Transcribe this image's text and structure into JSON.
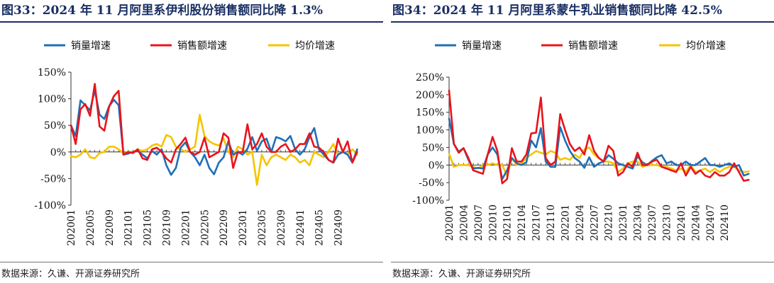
{
  "colors": {
    "volume": "#1f6fb6",
    "sales": "#e8141b",
    "price": "#f5c400",
    "title": "#1a2f63"
  },
  "panels": [
    {
      "title": "图33：2024 年 11 月阿里系伊利股份销售额同比降 1.3%",
      "source": "数据来源：久谦、开源证券研究所"
    },
    {
      "title": "图34：2024 年 11 月阿里系蒙牛乳业销售额同比降 42.5%",
      "source": "数据来源：久谦、开源证券研究所"
    }
  ],
  "chart_data": [
    {
      "type": "line",
      "title": "",
      "xlabel": "",
      "ylabel": "",
      "ylim": [
        -1.0,
        1.5
      ],
      "yticks": [
        -1.0,
        -0.5,
        0,
        0.5,
        1.0,
        1.5
      ],
      "ytick_labels": [
        "-100%",
        "-50%",
        "0%",
        "50%",
        "100%",
        "150%"
      ],
      "x_start": "202001",
      "x_end": "202411",
      "x_tick_labels": [
        "202001",
        "202005",
        "202009",
        "202101",
        "202105",
        "202109",
        "202201",
        "202205",
        "202209",
        "202301",
        "202305",
        "202309",
        "202401",
        "202405",
        "202409"
      ],
      "legend_position": "top",
      "series": [
        {
          "name": "销量增速",
          "color_key": "volume",
          "values": [
            0.5,
            0.3,
            0.97,
            0.88,
            0.78,
            1.16,
            0.7,
            0.62,
            0.86,
            0.98,
            0.88,
            -0.05,
            -0.03,
            0.0,
            0.02,
            -0.05,
            -0.12,
            0.02,
            -0.05,
            0.05,
            -0.25,
            -0.43,
            -0.3,
            0.08,
            0.18,
            0.0,
            -0.1,
            -0.25,
            -0.05,
            -0.3,
            -0.42,
            -0.2,
            -0.1,
            0.2,
            -0.05,
            0.0,
            -0.05,
            0.06,
            0.28,
            0.02,
            0.2,
            0.25,
            0.0,
            0.28,
            0.25,
            0.2,
            0.3,
            0.05,
            -0.05,
            0.05,
            0.28,
            0.45,
            0.05,
            -0.05,
            -0.15,
            -0.2,
            -0.05,
            0.0,
            -0.05,
            -0.2,
            0.05
          ]
        },
        {
          "name": "销售额增速",
          "color_key": "sales",
          "values": [
            0.5,
            0.15,
            0.8,
            0.9,
            0.68,
            1.28,
            0.48,
            0.4,
            0.85,
            1.05,
            1.15,
            -0.05,
            0.0,
            -0.02,
            0.05,
            -0.12,
            -0.15,
            0.05,
            0.08,
            0.0,
            -0.12,
            -0.2,
            0.05,
            0.15,
            0.27,
            0.0,
            -0.05,
            0.0,
            0.27,
            -0.1,
            -0.05,
            0.0,
            0.35,
            0.27,
            -0.3,
            0.0,
            0.0,
            0.52,
            0.05,
            0.15,
            0.35,
            0.1,
            0.0,
            0.0,
            0.1,
            0.15,
            0.0,
            0.05,
            0.15,
            0.15,
            0.35,
            0.1,
            0.08,
            0.0,
            -0.15,
            -0.2,
            0.25,
            0.0,
            0.2,
            -0.2,
            0.0
          ]
        },
        {
          "name": "均价增速",
          "color_key": "price",
          "values": [
            -0.08,
            -0.1,
            -0.05,
            0.05,
            -0.1,
            -0.12,
            -0.02,
            0.0,
            0.1,
            0.1,
            0.05,
            -0.03,
            0.0,
            0.0,
            0.05,
            0.02,
            0.05,
            0.12,
            0.15,
            0.1,
            0.32,
            0.28,
            0.1,
            0.05,
            0.0,
            0.05,
            0.1,
            0.7,
            0.3,
            0.2,
            0.15,
            0.12,
            0.25,
            0.0,
            -0.1,
            0.1,
            0.05,
            -0.05,
            0.0,
            -0.62,
            -0.05,
            -0.25,
            -0.1,
            -0.05,
            -0.1,
            -0.15,
            -0.05,
            -0.1,
            -0.2,
            -0.15,
            -0.25,
            0.0,
            -0.05,
            -0.1,
            0.0,
            0.15,
            -0.05,
            0.0,
            -0.05,
            0.05,
            -0.05
          ]
        }
      ]
    },
    {
      "type": "line",
      "title": "",
      "xlabel": "",
      "ylabel": "",
      "ylim": [
        -1.0,
        2.5
      ],
      "yticks": [
        -1.0,
        -0.5,
        0,
        0.5,
        1.0,
        1.5,
        2.0,
        2.5
      ],
      "ytick_labels": [
        "-100%",
        "-50%",
        "0%",
        "50%",
        "100%",
        "150%",
        "200%",
        "250%"
      ],
      "x_start": "202001",
      "x_end": "202411",
      "x_tick_labels": [
        "202001",
        "202004",
        "202007",
        "202010",
        "202101",
        "202104",
        "202107",
        "202110",
        "202201",
        "202204",
        "202207",
        "202210",
        "202301",
        "202304",
        "202307",
        "202310",
        "202401",
        "202404",
        "202407",
        "202410"
      ],
      "legend_position": "top",
      "series": [
        {
          "name": "销量增速",
          "color_key": "volume",
          "values": [
            1.32,
            0.6,
            0.38,
            0.48,
            0.15,
            -0.1,
            -0.08,
            -0.1,
            0.3,
            0.5,
            0.3,
            -0.4,
            -0.15,
            0.2,
            0.05,
            0.0,
            0.08,
            0.7,
            0.5,
            1.05,
            0.1,
            -0.05,
            -0.05,
            1.08,
            0.7,
            0.4,
            0.2,
            0.1,
            -0.08,
            0.22,
            -0.05,
            0.05,
            0.1,
            0.28,
            0.18,
            0.05,
            0.0,
            -0.05,
            -0.1,
            0.25,
            0.08,
            0.0,
            0.12,
            0.22,
            0.28,
            0.05,
            0.1,
            0.0,
            0.0,
            0.1,
            0.0,
            0.0,
            0.1,
            0.2,
            0.0,
            0.0,
            -0.05,
            0.0,
            0.05,
            -0.05,
            0.0,
            -0.3,
            -0.25
          ]
        },
        {
          "name": "销售额增速",
          "color_key": "sales",
          "values": [
            2.12,
            0.6,
            0.35,
            0.48,
            0.2,
            -0.15,
            -0.2,
            -0.25,
            0.3,
            0.8,
            0.4,
            -0.52,
            -0.4,
            0.48,
            0.1,
            0.1,
            0.3,
            0.9,
            0.92,
            1.92,
            0.2,
            0.0,
            0.1,
            1.45,
            1.0,
            0.6,
            0.4,
            0.5,
            0.3,
            0.85,
            0.4,
            0.2,
            0.1,
            0.55,
            0.4,
            -0.3,
            -0.2,
            0.05,
            -0.05,
            0.35,
            0.0,
            0.0,
            0.1,
            0.15,
            -0.05,
            -0.1,
            -0.15,
            -0.2,
            0.05,
            -0.3,
            -0.05,
            -0.25,
            -0.15,
            -0.3,
            -0.35,
            -0.2,
            -0.3,
            -0.3,
            -0.2,
            0.05,
            -0.2,
            -0.45,
            -0.42
          ]
        },
        {
          "name": "均价增速",
          "color_key": "price",
          "values": [
            0.32,
            -0.05,
            0.0,
            0.0,
            0.0,
            -0.05,
            -0.1,
            0.0,
            0.0,
            0.05,
            0.0,
            0.0,
            -0.3,
            0.2,
            0.0,
            0.05,
            0.2,
            0.3,
            0.4,
            0.35,
            0.3,
            0.4,
            0.35,
            0.15,
            0.2,
            0.15,
            0.3,
            0.2,
            0.45,
            0.5,
            0.3,
            0.2,
            0.1,
            0.1,
            0.05,
            -0.2,
            -0.1,
            0.05,
            0.1,
            0.1,
            -0.05,
            0.0,
            0.0,
            0.0,
            -0.05,
            -0.05,
            -0.1,
            -0.15,
            -0.1,
            -0.2,
            0.0,
            -0.2,
            -0.15,
            -0.1,
            -0.2,
            -0.1,
            -0.2,
            -0.1,
            -0.05,
            -0.05,
            -0.15,
            -0.2,
            -0.18
          ]
        }
      ]
    }
  ]
}
